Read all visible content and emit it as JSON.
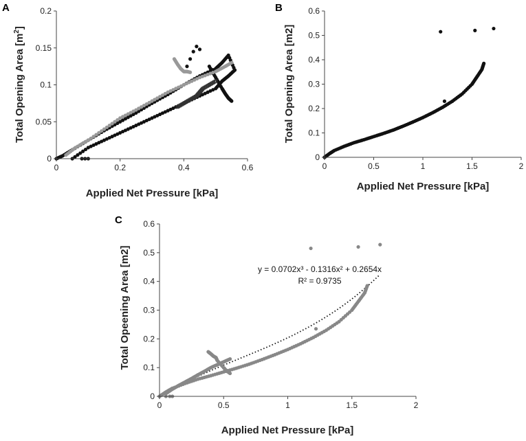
{
  "chart_data": [
    {
      "panel": "A",
      "type": "scatter",
      "xlabel": "Applied Net Pressure [kPa]",
      "ylabel_main": "Total Opening Area [m",
      "ylabel_sup": "2",
      "ylabel_end": "]",
      "xlim": [
        0,
        0.6
      ],
      "ylim": [
        0,
        0.2
      ],
      "xticks": [
        0,
        0.2,
        0.4,
        0.6
      ],
      "xtick_labels": [
        "0",
        "0.2",
        "0.4",
        "0.6"
      ],
      "yticks": [
        0,
        0.05,
        0.1,
        0.15,
        0.2
      ],
      "ytick_labels": [
        "0",
        "0.05",
        "0.1",
        "0.15",
        "0.2"
      ],
      "series": [
        {
          "color": "#111111",
          "marker": "filled",
          "x": [
            0.0,
            0.02,
            0.05,
            0.1,
            0.15,
            0.2,
            0.25,
            0.3,
            0.35,
            0.4,
            0.45,
            0.5,
            0.52,
            0.54,
            0.56
          ],
          "y": [
            0.0,
            0.004,
            0.012,
            0.025,
            0.038,
            0.05,
            0.062,
            0.075,
            0.087,
            0.1,
            0.112,
            0.122,
            0.13,
            0.14,
            0.12
          ]
        },
        {
          "color": "#111111",
          "marker": "filled",
          "x": [
            0.05,
            0.1,
            0.15,
            0.2,
            0.25,
            0.3,
            0.35,
            0.4,
            0.45,
            0.5,
            0.52,
            0.54,
            0.56
          ],
          "y": [
            0.0,
            0.015,
            0.025,
            0.035,
            0.045,
            0.055,
            0.065,
            0.075,
            0.085,
            0.095,
            0.105,
            0.112,
            0.12
          ]
        },
        {
          "color": "#111111",
          "marker": "filled",
          "x": [
            0.48,
            0.5,
            0.52,
            0.53,
            0.54,
            0.55
          ],
          "y": [
            0.125,
            0.11,
            0.095,
            0.088,
            0.082,
            0.078
          ]
        },
        {
          "color": "#111111",
          "marker": "filled",
          "x": [
            0.41,
            0.42,
            0.43,
            0.44,
            0.45
          ],
          "y": [
            0.125,
            0.135,
            0.145,
            0.152,
            0.148
          ]
        },
        {
          "color": "#111111",
          "marker": "filled",
          "x": [
            0.08,
            0.09,
            0.1
          ],
          "y": [
            0.0,
            0.0,
            0.0
          ]
        },
        {
          "color": "#999999",
          "marker": "filled",
          "x": [
            0.03,
            0.06,
            0.1,
            0.15,
            0.2,
            0.25,
            0.3,
            0.35,
            0.4,
            0.45,
            0.5,
            0.53,
            0.55
          ],
          "y": [
            0.005,
            0.015,
            0.025,
            0.04,
            0.055,
            0.066,
            0.078,
            0.09,
            0.1,
            0.11,
            0.118,
            0.125,
            0.13
          ]
        },
        {
          "color": "#999999",
          "marker": "filled",
          "x": [
            0.37,
            0.38,
            0.39,
            0.4,
            0.41,
            0.42
          ],
          "y": [
            0.135,
            0.128,
            0.122,
            0.118,
            0.118,
            0.117
          ]
        },
        {
          "color": "#333333",
          "marker": "open",
          "x": [
            0.38,
            0.4,
            0.42,
            0.44,
            0.45,
            0.46,
            0.48,
            0.5
          ],
          "y": [
            0.07,
            0.075,
            0.08,
            0.085,
            0.09,
            0.095,
            0.1,
            0.105
          ]
        }
      ]
    },
    {
      "panel": "B",
      "type": "scatter",
      "xlabel": "Applied Net Pressure [kPa]",
      "ylabel": "Total Opening Area [m2]",
      "xlim": [
        0,
        2
      ],
      "ylim": [
        0,
        0.6
      ],
      "xticks": [
        0,
        0.5,
        1,
        1.5,
        2
      ],
      "xtick_labels": [
        "0",
        "0.5",
        "1",
        "1.5",
        "2"
      ],
      "yticks": [
        0,
        0.1,
        0.2,
        0.3,
        0.4,
        0.5,
        0.6
      ],
      "ytick_labels": [
        "0",
        "0.1",
        "0.2",
        "0.3",
        "0.4",
        "0.5",
        "0.6"
      ],
      "series": [
        {
          "color": "#111111",
          "marker": "filled",
          "x": [
            0.0,
            0.05,
            0.1,
            0.2,
            0.3,
            0.4,
            0.5,
            0.6,
            0.7,
            0.8,
            0.9,
            1.0,
            1.1,
            1.2,
            1.3,
            1.4,
            1.5,
            1.55,
            1.6,
            1.62
          ],
          "y": [
            0.0,
            0.015,
            0.028,
            0.045,
            0.06,
            0.072,
            0.085,
            0.098,
            0.112,
            0.128,
            0.145,
            0.163,
            0.183,
            0.205,
            0.23,
            0.26,
            0.3,
            0.33,
            0.36,
            0.385
          ]
        },
        {
          "color": "#111111",
          "marker": "filled",
          "x": [
            1.18,
            1.53,
            1.72,
            1.22
          ],
          "y": [
            0.515,
            0.52,
            0.528,
            0.23
          ]
        }
      ]
    },
    {
      "panel": "C",
      "type": "scatter",
      "xlabel": "Applied Net Pressure [kPa]",
      "ylabel": "Total Opeening Area [m2]",
      "xlim": [
        0,
        2
      ],
      "ylim": [
        0,
        0.6
      ],
      "xticks": [
        0,
        0.5,
        1,
        1.5,
        2
      ],
      "xtick_labels": [
        "0",
        "0.5",
        "1",
        "1.5",
        "2"
      ],
      "yticks": [
        0,
        0.1,
        0.2,
        0.3,
        0.4,
        0.5,
        0.6
      ],
      "ytick_labels": [
        "0",
        "0.1",
        "0.2",
        "0.3",
        "0.4",
        "0.5",
        "0.6"
      ],
      "series": [
        {
          "color": "#888888",
          "marker": "filled",
          "x": [
            0.0,
            0.05,
            0.1,
            0.2,
            0.3,
            0.4,
            0.5,
            0.6,
            0.7,
            0.8,
            0.9,
            1.0,
            1.1,
            1.2,
            1.3,
            1.4,
            1.5,
            1.55,
            1.6,
            1.62
          ],
          "y": [
            0.0,
            0.015,
            0.028,
            0.045,
            0.06,
            0.072,
            0.085,
            0.098,
            0.112,
            0.128,
            0.145,
            0.163,
            0.183,
            0.205,
            0.23,
            0.26,
            0.3,
            0.33,
            0.36,
            0.385
          ]
        },
        {
          "color": "#888888",
          "marker": "filled",
          "x": [
            0.05,
            0.1,
            0.15,
            0.2,
            0.25,
            0.3,
            0.35,
            0.4,
            0.45,
            0.5,
            0.55
          ],
          "y": [
            0.01,
            0.025,
            0.038,
            0.05,
            0.062,
            0.075,
            0.087,
            0.1,
            0.11,
            0.12,
            0.13
          ]
        },
        {
          "color": "#888888",
          "marker": "filled",
          "x": [
            0.38,
            0.4,
            0.42,
            0.44,
            0.45,
            0.5,
            0.52,
            0.55
          ],
          "y": [
            0.155,
            0.148,
            0.14,
            0.135,
            0.125,
            0.1,
            0.09,
            0.08
          ]
        },
        {
          "color": "#888888",
          "marker": "filled",
          "x": [
            0.05,
            0.08,
            0.1
          ],
          "y": [
            0.0,
            0.0,
            0.0
          ]
        },
        {
          "color": "#888888",
          "marker": "filled",
          "x": [
            1.18,
            1.55,
            1.72,
            1.22
          ],
          "y": [
            0.515,
            0.52,
            0.528,
            0.235
          ]
        }
      ],
      "trendline": {
        "coefficients": [
          0.0702,
          -0.1316,
          0.2654
        ],
        "x_range": [
          0,
          1.72
        ],
        "style": "dotted"
      },
      "equation_text": "y = 0.0702x³ - 0.1316x² + 0.2654x",
      "r2_text": "R² = 0.9735"
    }
  ]
}
